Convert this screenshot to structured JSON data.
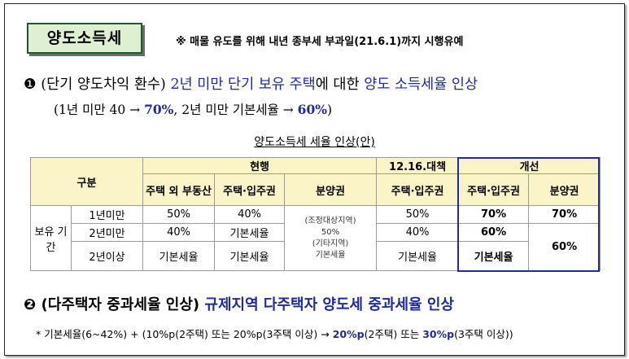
{
  "title": "양도소득세",
  "note": "※ 매물 유도를 위해 내년 종부세 부과일(21.6.1)까지 시행유예",
  "item1": {
    "bullet": "❶",
    "paren": "(단기 양도차익 환수)",
    "p1": "2년 미만 단기 보유 주택",
    "p2": "에 대한 ",
    "p3": "양도 소득세율 인상",
    "sub_a": "(1년 미만 40 → ",
    "sub_b": "70%",
    "sub_c": ", 2년 미만 기본세율 → ",
    "sub_d": "60%",
    "sub_e": ")"
  },
  "table": {
    "caption": "양도소득세 세율 인상(안)",
    "gubun": "구분",
    "current": "현행",
    "measure": "12.16.대책",
    "improve": "개선",
    "cols": {
      "non_house": "주택 외 부동산",
      "house": "주택·입주권",
      "presale": "분양권",
      "measure_house": "주택·입주권",
      "improve_house": "주택·입주권",
      "improve_presale": "분양권"
    },
    "holding": "보유 기간",
    "rows": [
      {
        "period": "1년미만",
        "non_house": "50%",
        "house": "40%",
        "measure": "50%",
        "imp_house": "70%",
        "imp_presale": "70%"
      },
      {
        "period": "2년미만",
        "non_house": "40%",
        "house": "기본세율",
        "measure": "40%",
        "imp_house": "60%",
        "imp_presale": "60%"
      },
      {
        "period": "2년이상",
        "non_house": "기본세율",
        "house": "기본세율",
        "measure": "기본세율",
        "imp_house": "기본세율"
      }
    ],
    "presale_lines": [
      "(조정대상지역)",
      "50%",
      "(기타지역)",
      "기본세율"
    ]
  },
  "item2": {
    "bullet": "❷",
    "paren": "(다주택자 중과세율 인상)",
    "text": "규제지역 다주택자 양도세 중과세율 인상"
  },
  "footnote": {
    "a": "* 기본세율(6~42%) + (10%p(2주택) 또는 20%p(3주택 이상) → ",
    "b": "20%p",
    "c": "(2주택) 또는 ",
    "d": "30%p",
    "e": "(3주택 이상))"
  }
}
